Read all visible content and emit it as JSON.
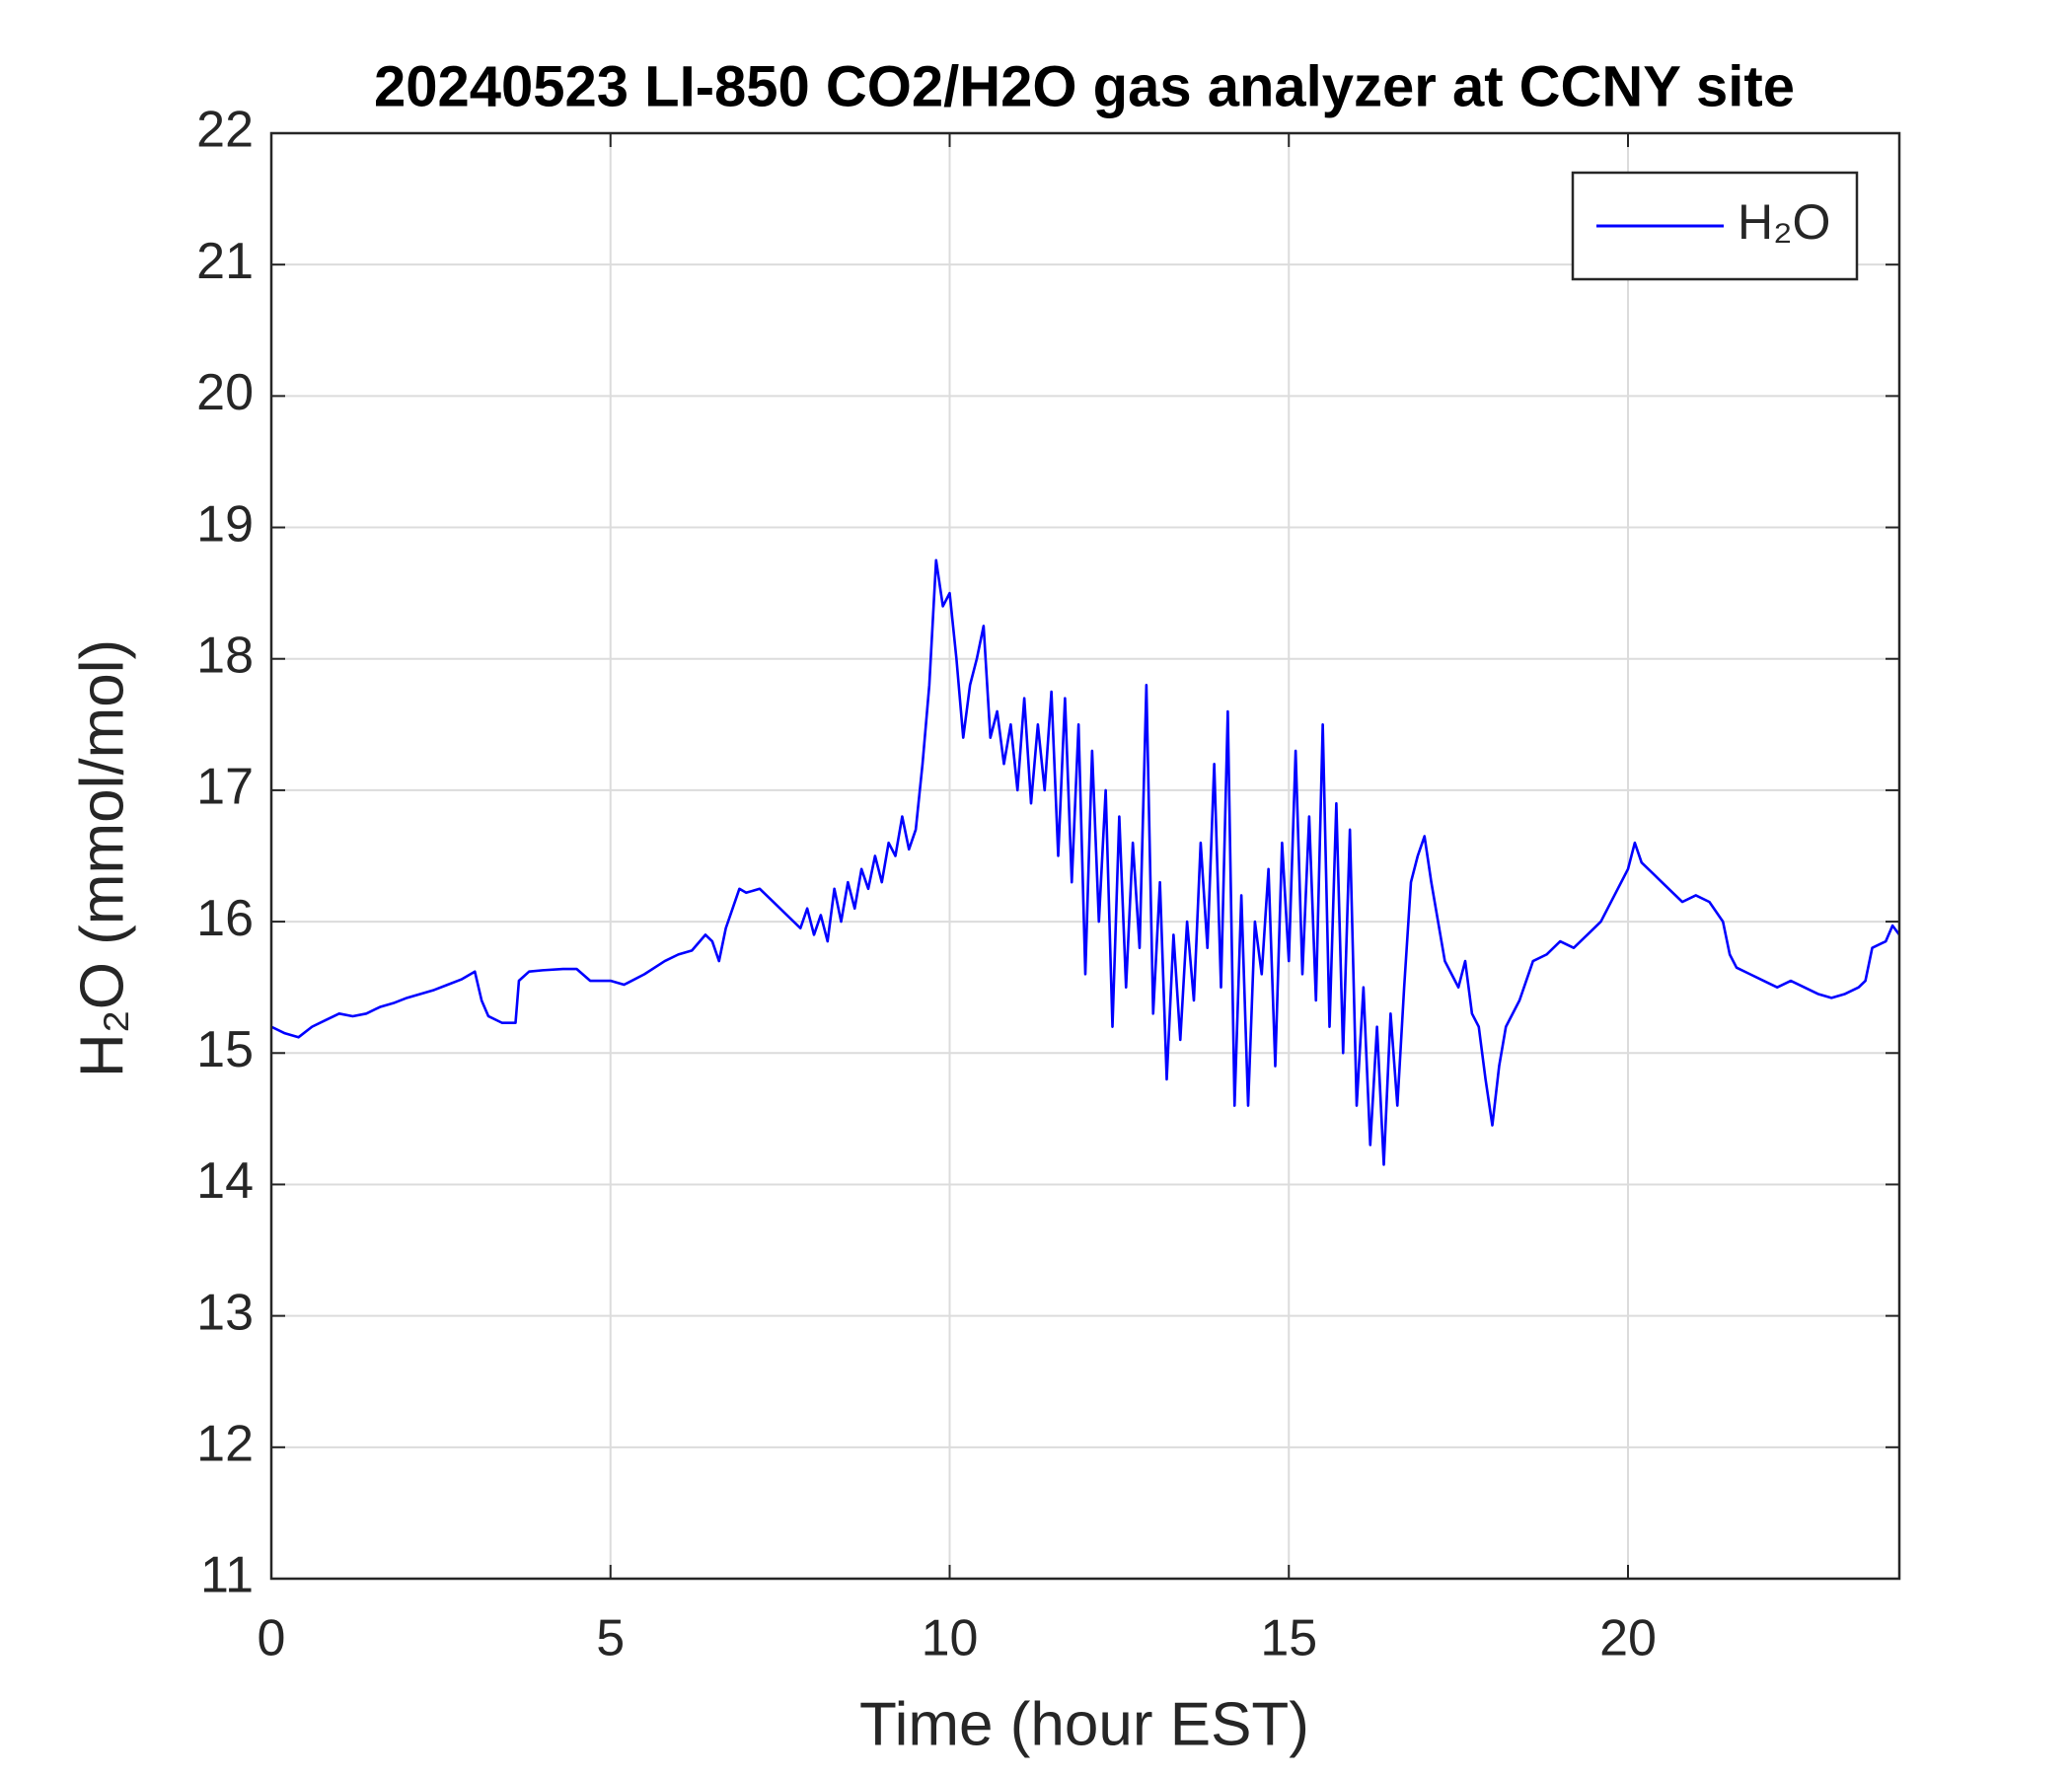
{
  "chart_data": {
    "type": "line",
    "title": "20240523 LI-850 CO2/H2O gas analyzer at CCNY site",
    "xlabel": "Time (hour EST)",
    "ylabel": "H₂O (mmol/mol)",
    "x": [
      0,
      0.2,
      0.4,
      0.6,
      0.8,
      1.0,
      1.2,
      1.4,
      1.6,
      1.8,
      2.0,
      2.2,
      2.4,
      2.6,
      2.8,
      3.0,
      3.1,
      3.2,
      3.4,
      3.6,
      3.65,
      3.8,
      4.0,
      4.3,
      4.5,
      4.7,
      5.0,
      5.2,
      5.5,
      5.8,
      6.0,
      6.2,
      6.4,
      6.5,
      6.6,
      6.7,
      6.8,
      6.9,
      7.0,
      7.2,
      7.4,
      7.6,
      7.8,
      7.9,
      8.0,
      8.1,
      8.2,
      8.3,
      8.4,
      8.5,
      8.6,
      8.7,
      8.8,
      8.9,
      9.0,
      9.1,
      9.2,
      9.3,
      9.4,
      9.5,
      9.6,
      9.7,
      9.8,
      9.9,
      10.0,
      10.1,
      10.2,
      10.3,
      10.4,
      10.5,
      10.6,
      10.7,
      10.8,
      10.9,
      11.0,
      11.1,
      11.2,
      11.3,
      11.4,
      11.5,
      11.6,
      11.7,
      11.8,
      11.9,
      12.0,
      12.1,
      12.2,
      12.3,
      12.4,
      12.5,
      12.6,
      12.7,
      12.8,
      12.9,
      13.0,
      13.1,
      13.2,
      13.3,
      13.4,
      13.5,
      13.6,
      13.7,
      13.8,
      13.9,
      14.0,
      14.1,
      14.2,
      14.3,
      14.4,
      14.5,
      14.6,
      14.7,
      14.8,
      14.9,
      15.0,
      15.1,
      15.2,
      15.3,
      15.4,
      15.5,
      15.6,
      15.7,
      15.8,
      15.9,
      16.0,
      16.1,
      16.2,
      16.3,
      16.4,
      16.5,
      16.6,
      16.7,
      16.8,
      16.9,
      17.0,
      17.1,
      17.2,
      17.3,
      17.4,
      17.5,
      17.6,
      17.7,
      17.8,
      17.9,
      18.0,
      18.1,
      18.2,
      18.4,
      18.6,
      18.8,
      19.0,
      19.2,
      19.4,
      19.6,
      19.8,
      20.0,
      20.1,
      20.2,
      20.4,
      20.6,
      20.8,
      21.0,
      21.2,
      21.4,
      21.5,
      21.6,
      21.8,
      22.0,
      22.2,
      22.4,
      22.6,
      22.8,
      23.0,
      23.2,
      23.4,
      23.5,
      23.6,
      23.8,
      23.9,
      24.0
    ],
    "series": [
      {
        "name": "H₂O",
        "color": "#0000ff",
        "values": [
          15.2,
          15.15,
          15.12,
          15.2,
          15.25,
          15.3,
          15.28,
          15.3,
          15.35,
          15.38,
          15.42,
          15.45,
          15.48,
          15.52,
          15.56,
          15.62,
          15.4,
          15.28,
          15.23,
          15.23,
          15.55,
          15.62,
          15.63,
          15.64,
          15.64,
          15.55,
          15.55,
          15.52,
          15.6,
          15.7,
          15.75,
          15.78,
          15.9,
          15.85,
          15.7,
          15.95,
          16.1,
          16.25,
          16.22,
          16.25,
          16.15,
          16.05,
          15.95,
          16.1,
          15.9,
          16.05,
          15.85,
          16.25,
          16.0,
          16.3,
          16.1,
          16.4,
          16.25,
          16.5,
          16.3,
          16.6,
          16.5,
          16.8,
          16.55,
          16.7,
          17.2,
          17.8,
          18.75,
          18.4,
          18.5,
          18.0,
          17.4,
          17.8,
          18.0,
          18.25,
          17.4,
          17.6,
          17.2,
          17.5,
          17.0,
          17.7,
          16.9,
          17.5,
          17.0,
          17.75,
          16.5,
          17.7,
          16.3,
          17.5,
          15.6,
          17.3,
          16.0,
          17.0,
          15.2,
          16.8,
          15.5,
          16.6,
          15.8,
          17.8,
          15.3,
          16.3,
          14.8,
          15.9,
          15.1,
          16.0,
          15.4,
          16.6,
          15.8,
          17.2,
          15.5,
          17.6,
          14.6,
          16.2,
          14.6,
          16.0,
          15.6,
          16.4,
          14.9,
          16.6,
          15.7,
          17.3,
          15.6,
          16.8,
          15.4,
          17.5,
          15.2,
          16.9,
          15.0,
          16.7,
          14.6,
          15.5,
          14.3,
          15.2,
          14.15,
          15.3,
          14.6,
          15.5,
          16.3,
          16.5,
          16.65,
          16.3,
          16.0,
          15.7,
          15.6,
          15.5,
          15.7,
          15.3,
          15.2,
          14.8,
          14.45,
          14.9,
          15.2,
          15.4,
          15.7,
          15.75,
          15.85,
          15.8,
          15.9,
          16.0,
          16.2,
          16.4,
          16.6,
          16.45,
          16.35,
          16.25,
          16.15,
          16.2,
          16.15,
          16.0,
          15.75,
          15.65,
          15.6,
          15.55,
          15.5,
          15.55,
          15.5,
          15.45,
          15.42,
          15.45,
          15.5,
          15.55,
          15.8,
          15.85,
          15.97,
          15.9
        ]
      }
    ],
    "xlim": [
      0,
      24
    ],
    "xticks": [
      0,
      5,
      10,
      15,
      20
    ],
    "ylim": [
      11,
      22
    ],
    "yticks": [
      11,
      12,
      13,
      14,
      15,
      16,
      17,
      18,
      19,
      20,
      21,
      22
    ],
    "grid": true,
    "legend": "northeast"
  }
}
